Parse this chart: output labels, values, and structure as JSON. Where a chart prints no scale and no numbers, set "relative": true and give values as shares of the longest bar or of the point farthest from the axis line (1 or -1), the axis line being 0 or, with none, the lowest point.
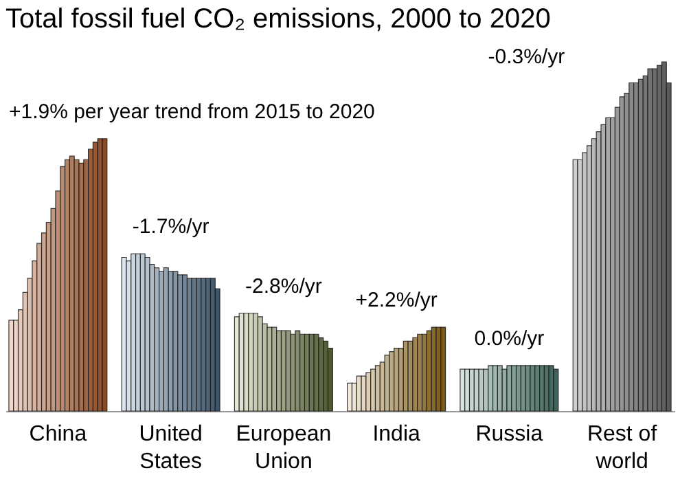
{
  "chart_data": {
    "type": "bar",
    "title": "Total fossil fuel CO₂ emissions, 2000 to 2020",
    "relative": true,
    "categories": [
      "China",
      "United States",
      "European Union",
      "India",
      "Russia",
      "Rest of world"
    ],
    "series": [
      {
        "colors": [
          "#f0d8cc",
          "#dce6f0",
          "#e8e8d8",
          "#f4ecdc",
          "#d8e4e0",
          "#d0d0d0"
        ],
        "values": [
          0.26,
          0.44,
          0.27,
          0.08,
          0.12,
          0.72
        ]
      },
      {
        "colors": [
          "#ebd1c4",
          "#d4dfe9",
          "#e0e1d0",
          "#eee5d2",
          "#d0ded9",
          "#cacaca"
        ],
        "values": [
          0.26,
          0.43,
          0.28,
          0.08,
          0.12,
          0.72
        ]
      },
      {
        "colors": [
          "#e6cabb",
          "#ccd7e2",
          "#d9dac7",
          "#e8ddc8",
          "#c9d7d3",
          "#c4c4c4"
        ],
        "values": [
          0.29,
          0.45,
          0.28,
          0.1,
          0.12,
          0.74
        ]
      },
      {
        "colors": [
          "#e1c3b3",
          "#c4d0dc",
          "#d1d3bf",
          "#e2d6bf",
          "#c1d1cc",
          "#bebebe"
        ],
        "values": [
          0.34,
          0.45,
          0.28,
          0.1,
          0.12,
          0.76
        ]
      },
      {
        "colors": [
          "#dcbcaa",
          "#bcc9d5",
          "#c9ccb6",
          "#dccfb5",
          "#b9cac5",
          "#b8b8b8"
        ],
        "values": [
          0.38,
          0.45,
          0.28,
          0.11,
          0.12,
          0.78
        ]
      },
      {
        "colors": [
          "#d6b4a2",
          "#b5c2ce",
          "#c2c5ae",
          "#d6c8ab",
          "#b2c4bf",
          "#b2b2b2"
        ],
        "values": [
          0.43,
          0.44,
          0.27,
          0.12,
          0.12,
          0.8
        ]
      },
      {
        "colors": [
          "#d1ad99",
          "#adbac7",
          "#babda6",
          "#cfc0a1",
          "#aabeb8",
          "#adadad"
        ],
        "values": [
          0.48,
          0.42,
          0.25,
          0.13,
          0.13,
          0.82
        ]
      },
      {
        "colors": [
          "#cca691",
          "#a5b3c0",
          "#b2b69d",
          "#c9b997",
          "#a2b7b1",
          "#a7a7a7"
        ],
        "values": [
          0.51,
          0.41,
          0.24,
          0.14,
          0.13,
          0.84
        ]
      },
      {
        "colors": [
          "#c79f88",
          "#9dacba",
          "#aaaf95",
          "#c3b28e",
          "#9ab1aa",
          "#a1a1a1"
        ],
        "values": [
          0.54,
          0.4,
          0.24,
          0.16,
          0.13,
          0.84
        ]
      },
      {
        "colors": [
          "#c29880",
          "#95a4b3",
          "#a3a88c",
          "#bdaa84",
          "#93aaa4",
          "#9b9b9b"
        ],
        "values": [
          0.58,
          0.41,
          0.23,
          0.17,
          0.12,
          0.87
        ]
      },
      {
        "colors": [
          "#bd9177",
          "#8d9dac",
          "#9ba184",
          "#b7a37a",
          "#8ba49d",
          "#959595"
        ],
        "values": [
          0.63,
          0.4,
          0.23,
          0.18,
          0.13,
          0.9
        ]
      },
      {
        "colors": [
          "#b88a6f",
          "#8596a5",
          "#939a7c",
          "#b19c70",
          "#839e96",
          "#8f8f8f"
        ],
        "values": [
          0.7,
          0.4,
          0.23,
          0.18,
          0.13,
          0.91
        ]
      },
      {
        "colors": [
          "#b38366",
          "#7d8e9e",
          "#8c9373",
          "#ab9466",
          "#7c9790",
          "#898989"
        ],
        "values": [
          0.72,
          0.39,
          0.22,
          0.2,
          0.13,
          0.94
        ]
      },
      {
        "colors": [
          "#ae7c5e",
          "#758798",
          "#848c6b",
          "#a58d5d",
          "#749189",
          "#838383"
        ],
        "values": [
          0.73,
          0.39,
          0.23,
          0.2,
          0.13,
          0.94
        ]
      },
      {
        "colors": [
          "#a97555",
          "#6d8091",
          "#7c8562",
          "#9f8653",
          "#6c8a82",
          "#7d7d7d"
        ],
        "values": [
          0.72,
          0.38,
          0.22,
          0.21,
          0.13,
          0.95
        ]
      },
      {
        "colors": [
          "#a36d4d",
          "#66798a",
          "#757e5a",
          "#997f49",
          "#65847c",
          "#777777"
        ],
        "values": [
          0.71,
          0.38,
          0.22,
          0.22,
          0.13,
          0.96
        ]
      },
      {
        "colors": [
          "#9e6644",
          "#5e7183",
          "#6d7652",
          "#92773f",
          "#5d7e75",
          "#727272"
        ],
        "values": [
          0.72,
          0.38,
          0.22,
          0.22,
          0.13,
          0.98
        ]
      },
      {
        "colors": [
          "#995f3c",
          "#566a7c",
          "#656f49",
          "#8c7035",
          "#55776e",
          "#6c6c6c"
        ],
        "values": [
          0.75,
          0.38,
          0.22,
          0.23,
          0.13,
          0.98
        ]
      },
      {
        "colors": [
          "#945833",
          "#4e6376",
          "#5d6841",
          "#86692c",
          "#4d7167",
          "#666666"
        ],
        "values": [
          0.77,
          0.38,
          0.21,
          0.24,
          0.13,
          0.99
        ]
      },
      {
        "colors": [
          "#8f512b",
          "#465b6f",
          "#566138",
          "#806122",
          "#466a61",
          "#606060"
        ],
        "values": [
          0.78,
          0.38,
          0.2,
          0.24,
          0.13,
          1
        ]
      },
      {
        "colors": [
          "#8a4a22",
          "#3e5468",
          "#4e5a30",
          "#7a5a18",
          "#3e645a",
          "#5a5a5a"
        ],
        "values": [
          0.78,
          0.35,
          0.18,
          0.24,
          0.12,
          0.94
        ]
      }
    ],
    "annotations": [
      "+1.9% per year trend from 2015 to 2020",
      "-1.7%/yr",
      "-2.8%/yr",
      "+2.2%/yr",
      "0.0%/yr",
      "-0.3%/yr"
    ]
  }
}
